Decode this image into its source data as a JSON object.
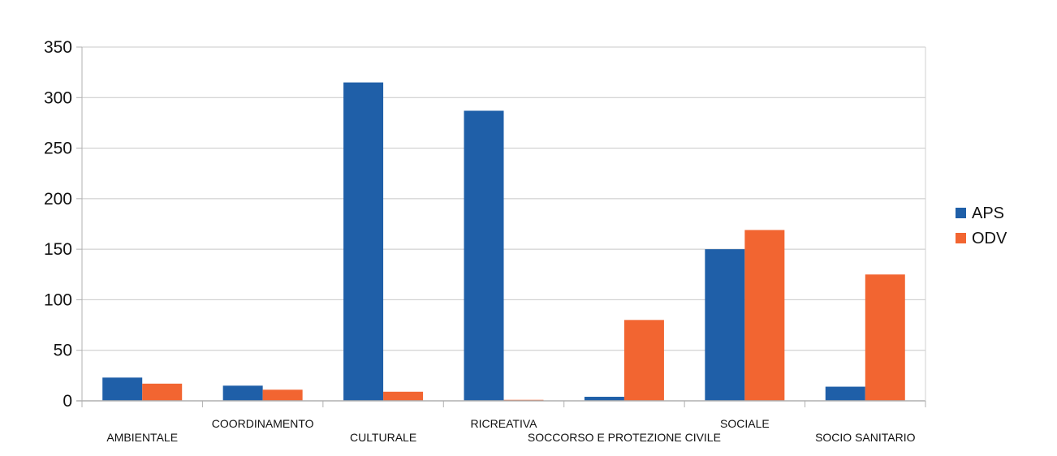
{
  "chart_data": {
    "type": "bar",
    "categories": [
      "AMBIENTALE",
      "COORDINAMENTO",
      "CULTURALE",
      "RICREATIVA",
      "SOCCORSO  E  PROTEZIONE  CIVILE",
      "SOCIALE",
      "SOCIO  SANITARIO"
    ],
    "series": [
      {
        "name": "APS",
        "values": [
          23,
          15,
          315,
          287,
          4,
          150,
          14
        ],
        "color": "#1f5fa8"
      },
      {
        "name": "ODV",
        "values": [
          17,
          11,
          9,
          1,
          80,
          169,
          125
        ],
        "color": "#f26531"
      }
    ],
    "ylim": [
      0,
      350
    ],
    "yticks": [
      0,
      50,
      100,
      150,
      200,
      250,
      300,
      350
    ],
    "grid": true,
    "legend_position": "right"
  }
}
